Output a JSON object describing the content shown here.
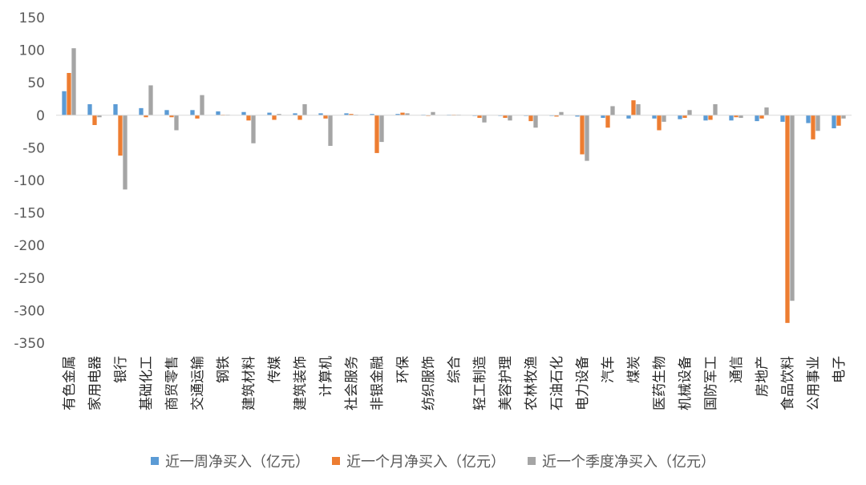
{
  "chart_data": {
    "type": "bar",
    "title": "",
    "xlabel": "",
    "ylabel": "",
    "ylim": [
      -350,
      150
    ],
    "yticks": [
      150,
      100,
      50,
      0,
      -50,
      -100,
      -150,
      -200,
      -250,
      -300,
      -350
    ],
    "grid": false,
    "legend_position": "bottom",
    "categories": [
      "有色金属",
      "家用电器",
      "银行",
      "基础化工",
      "商贸零售",
      "交通运输",
      "钢铁",
      "建筑材料",
      "传媒",
      "建筑装饰",
      "计算机",
      "社会服务",
      "非银金融",
      "环保",
      "纺织服饰",
      "综合",
      "轻工制造",
      "美容护理",
      "农林牧渔",
      "石油石化",
      "电力设备",
      "汽车",
      "煤炭",
      "医药生物",
      "机械设备",
      "国防军工",
      "通信",
      "房地产",
      "食品饮料",
      "公用事业",
      "电子"
    ],
    "series": [
      {
        "name": "近一周净买入（亿元）",
        "color": "#5B9BD5",
        "values": [
          37,
          17,
          17,
          11,
          8,
          8,
          6,
          5,
          4,
          3,
          3,
          3,
          2,
          2,
          1,
          1,
          -1,
          -1,
          -1,
          -1,
          -2,
          -4,
          -5,
          -5,
          -6,
          -8,
          -8,
          -9,
          -10,
          -12,
          -20
        ]
      },
      {
        "name": "近一个月净买入（亿元）",
        "color": "#ED7D31",
        "values": [
          65,
          -15,
          -62,
          -3,
          -3,
          -5,
          1,
          -8,
          -7,
          -7,
          -5,
          2,
          -58,
          4,
          -1,
          1,
          -4,
          -4,
          -9,
          -2,
          -60,
          -19,
          23,
          -23,
          -4,
          -7,
          -3,
          -5,
          -319,
          -37,
          -16
        ]
      },
      {
        "name": "近一个季度净买入（亿元）",
        "color": "#A5A5A5",
        "values": [
          103,
          -3,
          -114,
          46,
          -23,
          31,
          1,
          -43,
          2,
          17,
          -47,
          1,
          -41,
          3,
          5,
          1,
          -11,
          -8,
          -19,
          5,
          -70,
          14,
          17,
          -10,
          8,
          17,
          -4,
          12,
          -285,
          -24,
          -5
        ]
      }
    ]
  }
}
